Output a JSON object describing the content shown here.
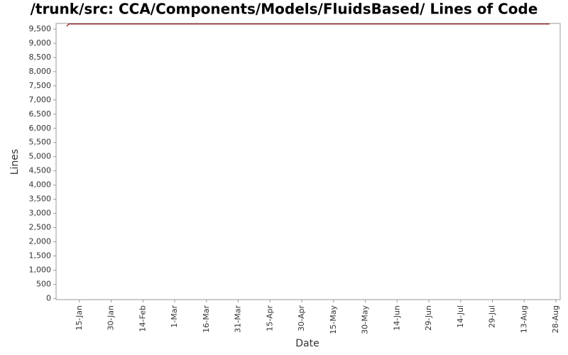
{
  "chart_data": {
    "type": "line",
    "title": "/trunk/src: CCA/Components/Models/FluidsBased/ Lines of Code",
    "x_label": "Date",
    "y_label": "Lines",
    "x": [
      9,
      10,
      237
    ],
    "values": [
      9600,
      9680,
      9680
    ],
    "color": "#8b0000",
    "xlim": [
      4,
      242
    ],
    "xticks": [
      {
        "value": 15,
        "label": "15-Jan"
      },
      {
        "value": 30,
        "label": "30-Jan"
      },
      {
        "value": 45,
        "label": "14-Feb"
      },
      {
        "value": 60,
        "label": "1-Mar"
      },
      {
        "value": 75,
        "label": "16-Mar"
      },
      {
        "value": 90,
        "label": "31-Mar"
      },
      {
        "value": 105,
        "label": "15-Apr"
      },
      {
        "value": 120,
        "label": "30-Apr"
      },
      {
        "value": 135,
        "label": "15-May"
      },
      {
        "value": 150,
        "label": "30-May"
      },
      {
        "value": 165,
        "label": "14-Jun"
      },
      {
        "value": 180,
        "label": "29-Jun"
      },
      {
        "value": 195,
        "label": "14-Jul"
      },
      {
        "value": 210,
        "label": "29-Jul"
      },
      {
        "value": 225,
        "label": "13-Aug"
      },
      {
        "value": 240,
        "label": "28-Aug"
      }
    ],
    "ylim": [
      -40,
      9700
    ],
    "yticks": [
      0,
      500,
      {
        "value": 1000,
        "label": "1,000"
      },
      {
        "value": 1500,
        "label": "1,500"
      },
      {
        "value": 2000,
        "label": "2,000"
      },
      {
        "value": 2500,
        "label": "2,500"
      },
      {
        "value": 3000,
        "label": "3,000"
      },
      {
        "value": 3500,
        "label": "3,500"
      },
      {
        "value": 4000,
        "label": "4,000"
      },
      {
        "value": 4500,
        "label": "4,500"
      },
      {
        "value": 5000,
        "label": "5,000"
      },
      {
        "value": 5500,
        "label": "5,500"
      },
      {
        "value": 6000,
        "label": "6,000"
      },
      {
        "value": 6500,
        "label": "6,500"
      },
      {
        "value": 7000,
        "label": "7,000"
      },
      {
        "value": 7500,
        "label": "7,500"
      },
      {
        "value": 8000,
        "label": "8,000"
      },
      {
        "value": 8500,
        "label": "8,500"
      },
      {
        "value": 9000,
        "label": "9,000"
      },
      {
        "value": 9500,
        "label": "9,500"
      }
    ],
    "grid": false
  }
}
